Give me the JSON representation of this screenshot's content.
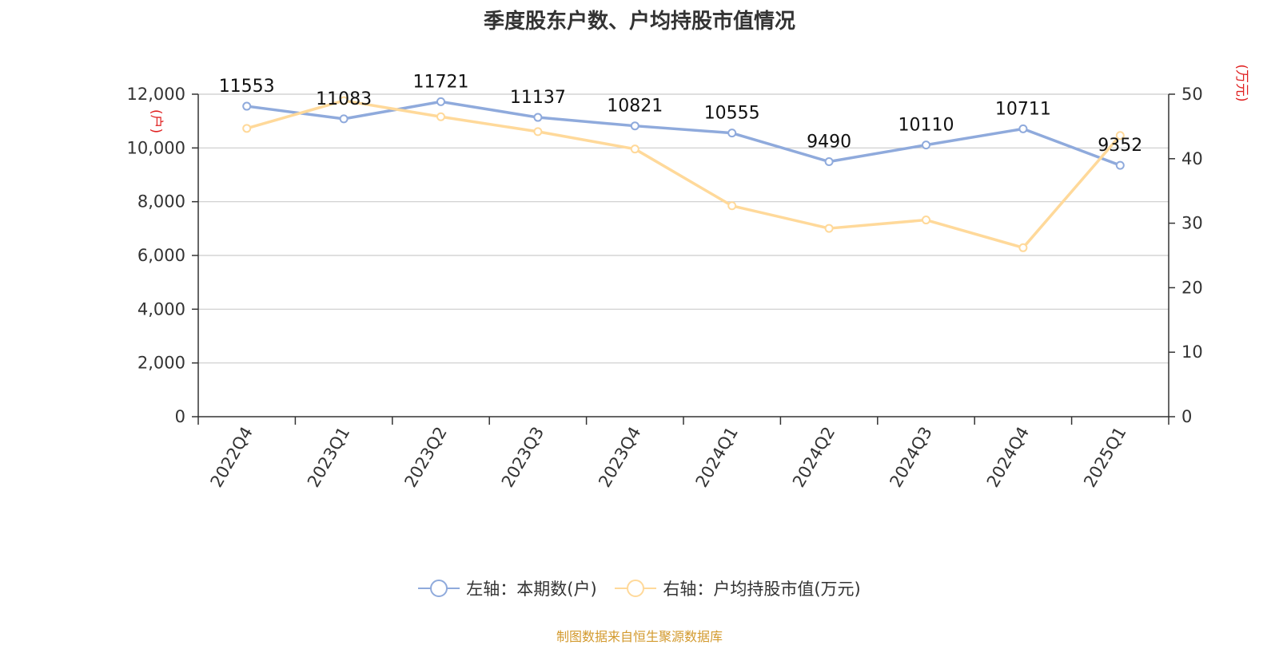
{
  "chart_data": {
    "type": "line",
    "title": "季度股东户数、户均持股市值情况",
    "categories": [
      "2022Q4",
      "2023Q1",
      "2023Q2",
      "2023Q3",
      "2023Q4",
      "2024Q1",
      "2024Q2",
      "2024Q3",
      "2024Q4",
      "2025Q1"
    ],
    "y_left": {
      "label": "(户)",
      "min": 0,
      "max": 12000,
      "ticks": [
        0,
        2000,
        4000,
        6000,
        8000,
        10000,
        12000
      ],
      "tick_labels": [
        "0",
        "2,000",
        "4,000",
        "6,000",
        "8,000",
        "10,000",
        "12,000"
      ]
    },
    "y_right": {
      "label": "(万元)",
      "min": 0,
      "max": 50,
      "ticks": [
        0,
        10,
        20,
        30,
        40,
        50
      ],
      "tick_labels": [
        "0",
        "10",
        "20",
        "30",
        "40",
        "50"
      ]
    },
    "grid": true,
    "legend_position": "bottom",
    "series": [
      {
        "name": "左轴：本期数(户)",
        "axis": "left",
        "color": "#8faadc",
        "values": [
          11553,
          11083,
          11721,
          11137,
          10821,
          10555,
          9490,
          10110,
          10711,
          9352
        ],
        "data_labels": [
          "11553",
          "11083",
          "11721",
          "11137",
          "10821",
          "10555",
          "9490",
          "10110",
          "10711",
          "9352"
        ]
      },
      {
        "name": "右轴：户均持股市值(万元)",
        "axis": "right",
        "color": "#ffd99a",
        "values": [
          44.7,
          49.0,
          46.5,
          44.2,
          41.5,
          32.7,
          29.2,
          30.5,
          26.2,
          43.6
        ]
      }
    ]
  },
  "source": "制图数据来自恒生聚源数据库"
}
